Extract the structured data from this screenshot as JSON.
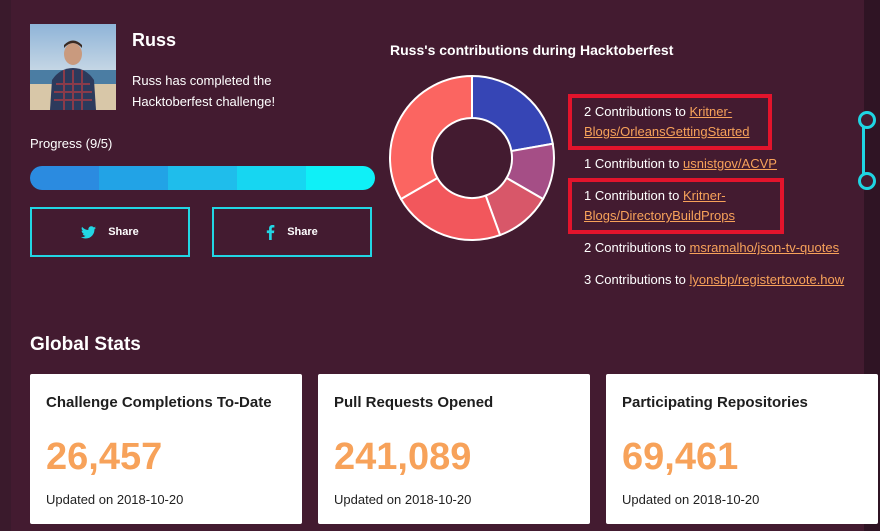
{
  "user": {
    "name": "Russ",
    "description": "Russ has completed the Hacktoberfest challenge!"
  },
  "progress": {
    "label": "Progress (9/5)",
    "value": 9,
    "goal": 5,
    "segment_colors": [
      "#2b8be0",
      "#22a3e6",
      "#1fbdeb",
      "#17d6f1",
      "#0ff0f7"
    ]
  },
  "share": {
    "twitter_label": "Share",
    "facebook_label": "Share",
    "border_color": "#22d6e4"
  },
  "contributions": {
    "title": "Russ's contributions during Hacktoberfest",
    "items": [
      {
        "prefix": "2 Contributions to ",
        "repo_line1": "Kritner-",
        "repo_line2": "Blogs/OrleansGettingStarted",
        "count": 2,
        "color": "#3645b5",
        "highlighted": true
      },
      {
        "prefix": "1 Contribution to ",
        "repo_line1": "usnistgov/ACVP",
        "repo_line2": "",
        "count": 1,
        "color": "#a54e86",
        "highlighted": false
      },
      {
        "prefix": "1 Contribution to ",
        "repo_line1": "Kritner-",
        "repo_line2": "Blogs/DirectoryBuildProps",
        "count": 1,
        "color": "#d85769",
        "highlighted": true
      },
      {
        "prefix": "2 Contributions to ",
        "repo_line1": "msramalho/json-tv-quotes",
        "repo_line2": "",
        "count": 2,
        "color": "#f2575c",
        "highlighted": false
      },
      {
        "prefix": "3 Contributions to ",
        "repo_line1": "lyonsbp/registertovote.how",
        "repo_line2": "",
        "count": 3,
        "color": "#fb6561",
        "highlighted": false
      }
    ]
  },
  "global_stats": {
    "title": "Global Stats",
    "cards": [
      {
        "title": "Challenge Completions To-Date",
        "value": "26,457",
        "updated": "Updated on 2018-10-20"
      },
      {
        "title": "Pull Requests Opened",
        "value": "241,089",
        "updated": "Updated on 2018-10-20"
      },
      {
        "title": "Participating Repositories",
        "value": "69,461",
        "updated": "Updated on 2018-10-20"
      }
    ]
  },
  "colors": {
    "background": "#431b30",
    "accent_orange": "#f7a25a",
    "highlight_red": "#e3142c",
    "cyan": "#22d6e4"
  },
  "icons": {
    "twitter": "twitter-icon",
    "facebook": "facebook-icon"
  }
}
